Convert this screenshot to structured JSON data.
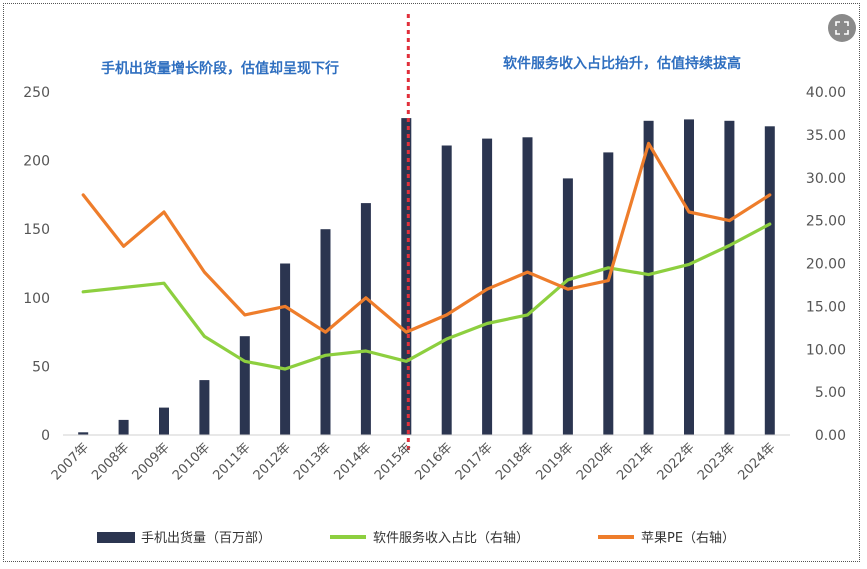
{
  "chart_data": {
    "type": "bar+line",
    "categories": [
      "2007年",
      "2008年",
      "2009年",
      "2010年",
      "2011年",
      "2012年",
      "2013年",
      "2014年",
      "2015年",
      "2016年",
      "2017年",
      "2018年",
      "2019年",
      "2020年",
      "2021年",
      "2022年",
      "2023年",
      "2024年"
    ],
    "bar_series": {
      "name": "手机出货量（百万部）",
      "axis": "left",
      "color": "#2b3550",
      "values": [
        2,
        11,
        20,
        40,
        72,
        125,
        150,
        169,
        231,
        211,
        216,
        217,
        187,
        206,
        229,
        230,
        229,
        225
      ]
    },
    "line_series": [
      {
        "name": "软件服务收入占比（右轴）",
        "axis": "right",
        "color": "#8dcf3f",
        "values": [
          16.7,
          17.2,
          17.7,
          11.5,
          8.6,
          7.7,
          9.3,
          9.8,
          8.6,
          11.2,
          13.0,
          14.0,
          18.1,
          19.5,
          18.7,
          19.9,
          22.1,
          24.6
        ]
      },
      {
        "name": "苹果PE（右轴）",
        "axis": "right",
        "color": "#ee7d2b",
        "values": [
          28,
          22,
          26,
          19,
          14,
          15,
          12,
          16,
          12,
          14,
          17,
          19,
          17,
          18,
          34,
          26,
          25,
          28
        ]
      }
    ],
    "left_axis": {
      "min": 0,
      "max": 250,
      "step": 50,
      "ticks": [
        "0",
        "50",
        "100",
        "150",
        "200",
        "250"
      ]
    },
    "right_axis": {
      "min": 0,
      "max": 40,
      "step": 5,
      "ticks": [
        "0.00",
        "5.00",
        "10.00",
        "15.00",
        "20.00",
        "25.00",
        "30.00",
        "35.00",
        "40.00"
      ]
    },
    "divider_after": "2015年",
    "annotations": {
      "left_phase": "手机出货量增长阶段，估值却呈现下行",
      "right_phase": "软件服务收入占比抬升，估值持续拔高"
    },
    "legend_position": "bottom",
    "grid": false
  },
  "ui": {
    "expand_icon": "expand-icon"
  }
}
